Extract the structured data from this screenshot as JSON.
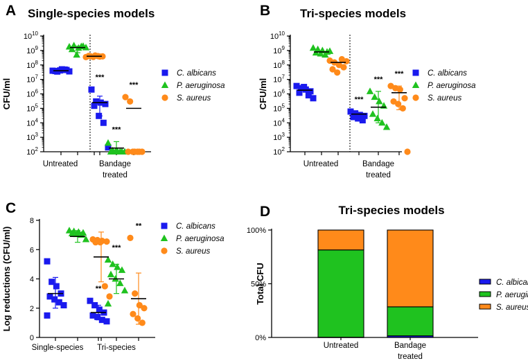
{
  "colors": {
    "calb": "#1a1aee",
    "paer": "#1fc21f",
    "saur": "#ff8a1a"
  },
  "legend": [
    {
      "key": "calb",
      "label": "C. albicans"
    },
    {
      "key": "paer",
      "label": "P. aeruginosa"
    },
    {
      "key": "saur",
      "label": "S. aureus"
    }
  ],
  "chart_data": [
    {
      "panel": "A",
      "type": "scatter",
      "title": "Single-species models",
      "ylabel": "CFU/ml",
      "yscale": "log",
      "ylim": [
        100,
        10000000000
      ],
      "yticks": [
        "10^2",
        "10^3",
        "10^4",
        "10^5",
        "10^6",
        "10^7",
        "10^8",
        "10^9",
        "10^10"
      ],
      "categories": [
        "Untreated",
        "Bandage treated"
      ],
      "series": [
        {
          "key": "calb",
          "values": [
            [
              40000000,
              35000000,
              50000000,
              45000000,
              38000000,
              42000000,
              48000000,
              36000000
            ],
            [
              2000000,
              300000,
              250000,
              200000,
              150000,
              30000,
              10000,
              200
            ]
          ]
        },
        {
          "key": "paer",
          "values": [
            [
              1800000000,
              2200000000,
              1500000000,
              2000000000,
              1200000000,
              500000000,
              1900000000,
              1600000000
            ],
            [
              400,
              120,
              110,
              100,
              100,
              100,
              100,
              100
            ]
          ]
        },
        {
          "key": "saur",
          "values": [
            [
              350000000,
              400000000,
              450000000,
              380000000,
              420000000,
              360000000,
              410000000,
              390000000
            ],
            [
              600000,
              300000,
              100,
              100,
              100,
              100,
              100,
              100
            ]
          ]
        }
      ],
      "means": [
        [
          40000000,
          1600000000,
          400000000
        ],
        [
          250000,
          180,
          100000
        ]
      ],
      "err": [
        [
          [
            30000000,
            50000000
          ],
          [
            700000000,
            2000000000
          ],
          [
            350000000,
            450000000
          ]
        ],
        [
          [
            30000,
            700000
          ],
          [
            100,
            500
          ],
          null
        ]
      ],
      "stars": [
        null,
        null,
        null,
        "***",
        "***",
        "***"
      ]
    },
    {
      "panel": "B",
      "type": "scatter",
      "title": "Tri-species models",
      "ylabel": "CFU/ml",
      "yscale": "log",
      "ylim": [
        100,
        10000000000
      ],
      "yticks": [
        "10^2",
        "10^3",
        "10^4",
        "10^5",
        "10^6",
        "10^7",
        "10^8",
        "10^9",
        "10^10"
      ],
      "categories": [
        "Untreated",
        "Bandage treated"
      ],
      "series": [
        {
          "key": "calb",
          "values": [
            [
              3500000,
              2500000,
              2000000,
              1500000,
              1200000,
              3000000,
              800000,
              500000
            ],
            [
              60000,
              45000,
              35000,
              30000,
              25000,
              20000,
              15000
            ]
          ]
        },
        {
          "key": "paer",
          "values": [
            [
              1500000000,
              1200000000,
              1000000000,
              800000000,
              700000000,
              600000000,
              500000000,
              900000000
            ],
            [
              1500000,
              600000,
              300000,
              150000,
              40000,
              20000,
              10000,
              5000
            ]
          ]
        },
        {
          "key": "saur",
          "values": [
            [
              200000000,
              150000000,
              100000000,
              70000000,
              50000000,
              30000000,
              250000000,
              180000000
            ],
            [
              3500000,
              2500000,
              2000000,
              500000,
              300000,
              200000,
              100000,
              100
            ]
          ]
        }
      ],
      "means": [
        [
          1800000,
          800000000,
          150000000
        ],
        [
          40000,
          120000,
          1200000
        ]
      ],
      "err": [
        [
          null,
          null,
          null
        ],
        [
          null,
          [
            10000,
            1500000
          ],
          [
            80000,
            3500000
          ]
        ]
      ],
      "stars": [
        null,
        null,
        null,
        "***",
        "***",
        "***"
      ]
    },
    {
      "panel": "C",
      "type": "scatter",
      "ylabel": "Log reductions (CFU/ml)",
      "ylim": [
        0,
        8
      ],
      "yticks": [
        "0",
        "2",
        "4",
        "6",
        "8"
      ],
      "categories": [
        "Single-species",
        "Tri-species"
      ],
      "series": [
        {
          "key": "calb",
          "values": [
            [
              5.2,
              3.8,
              3.5,
              3.0,
              2.8,
              2.6,
              2.4,
              2.2,
              1.5
            ],
            [
              2.5,
              2.2,
              1.9,
              1.7,
              1.5,
              1.4,
              1.2,
              1.1
            ]
          ]
        },
        {
          "key": "paer",
          "values": [
            [
              7.3,
              7.25,
              7.2,
              7.15,
              7.1,
              7.05,
              7.0,
              6.7
            ],
            [
              5.3,
              5.0,
              4.8,
              4.6,
              4.3,
              4.0,
              3.7,
              3.2,
              2.3
            ]
          ]
        },
        {
          "key": "saur",
          "values": [
            [
              6.7,
              6.65,
              6.6,
              6.55,
              6.5,
              6.5,
              3.5,
              2.8
            ],
            [
              6.8,
              3.0,
              2.2,
              2.0,
              1.6,
              1.3,
              1.0
            ]
          ]
        }
      ],
      "means": [
        [
          3.0,
          6.9,
          5.5
        ],
        [
          1.7,
          4.0,
          2.65
        ]
      ],
      "err": [
        [
          [
            2.0,
            4.1
          ],
          [
            6.5,
            7.3
          ],
          [
            3.8,
            7.2
          ]
        ],
        [
          [
            1.2,
            2.2
          ],
          [
            3.0,
            5.0
          ],
          [
            0.9,
            4.4
          ]
        ]
      ],
      "stars": [
        null,
        null,
        null,
        "**",
        "***",
        "**"
      ]
    },
    {
      "panel": "D",
      "type": "bar",
      "stacked": true,
      "title": "Tri-species models",
      "ylabel": "Total CFU",
      "ylim": [
        0,
        100
      ],
      "yticks": [
        "0%",
        "50%",
        "100%"
      ],
      "categories": [
        "Untreated",
        "Bandage treated"
      ],
      "series": [
        {
          "key": "calb",
          "values": [
            0.2,
            1.5
          ]
        },
        {
          "key": "paer",
          "values": [
            81.3,
            27
          ]
        },
        {
          "key": "saur",
          "values": [
            18.5,
            71.5
          ]
        }
      ]
    }
  ]
}
